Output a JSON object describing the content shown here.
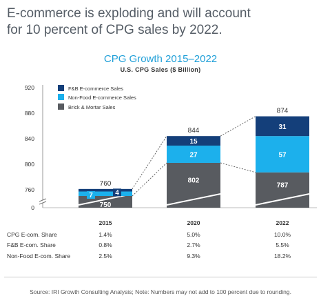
{
  "headline": {
    "line1": "E-commerce is exploding and will account",
    "line2": "for 10 percent of CPG sales by 2022."
  },
  "colors": {
    "fb": "#143f7a",
    "nonfood": "#1cb0ec",
    "brick": "#585b60",
    "title": "#1f9fd8"
  },
  "chart_data": {
    "type": "bar",
    "stacked": true,
    "title": "CPG Growth 2015–2022",
    "subtitle": "U.S. CPG Sales ($ Billion)",
    "ylabel": "",
    "xlabel": "",
    "ylim": [
      0,
      920
    ],
    "y_axis_break": true,
    "yticks": [
      "0",
      "760",
      "800",
      "840",
      "880",
      "920"
    ],
    "categories": [
      "2015",
      "2020",
      "2022"
    ],
    "legend_position": "top-left",
    "series": [
      {
        "name": "F&B E-commerce Sales",
        "values": [
          4,
          15,
          31
        ]
      },
      {
        "name": "Non-Food E-commerce Sales",
        "values": [
          7,
          27,
          57
        ]
      },
      {
        "name": "Brick & Mortar Sales",
        "values": [
          750,
          802,
          787
        ]
      }
    ],
    "legend_order": [
      "F&B E-commerce Sales",
      "Non-Food E-commerce Sales",
      "Brick & Mortar Sales"
    ],
    "totals": [
      "760",
      "844",
      "874"
    ],
    "table": {
      "row_labels": [
        "CPG E-com. Share",
        "F&B E-com. Share",
        "Non-Food E-com. Share"
      ],
      "rows": [
        [
          "1.4%",
          "5.0%",
          "10.0%"
        ],
        [
          "0.8%",
          "2.7%",
          "5.5%"
        ],
        [
          "2.5%",
          "9.3%",
          "18.2%"
        ]
      ]
    }
  },
  "source": "Source: IRI Growth Consulting Analysis; Note: Numbers may not add to 100 percent due to rounding."
}
